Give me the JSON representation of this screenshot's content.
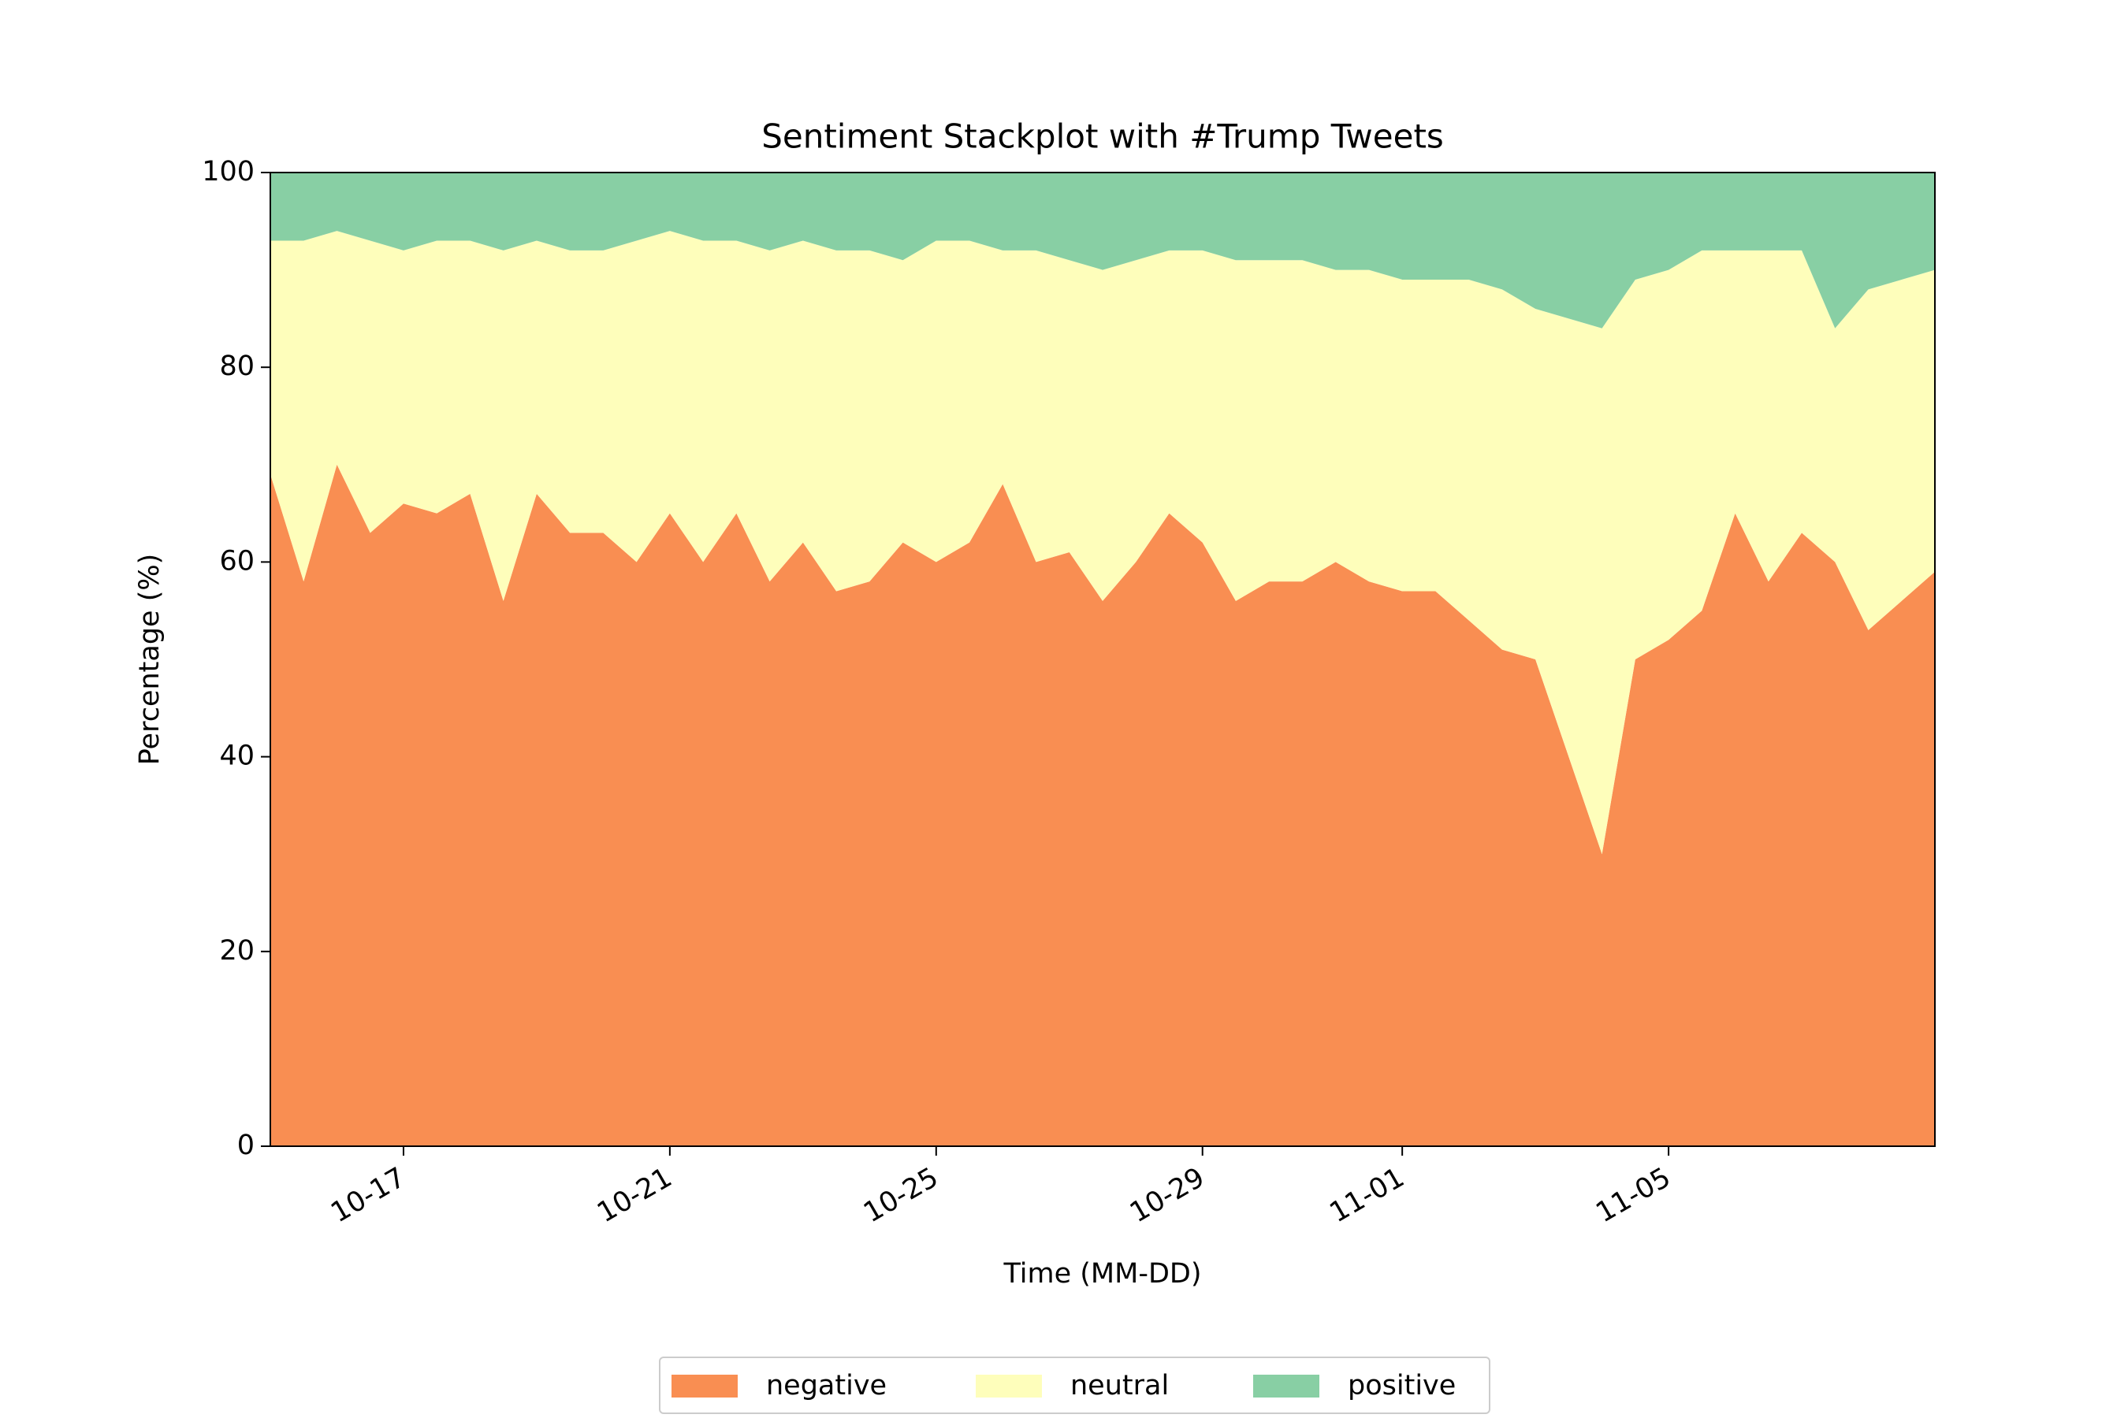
{
  "chart_data": {
    "type": "stackplot",
    "title": "Sentiment Stackplot with #Trump Tweets",
    "x_label": "Time (MM-DD)",
    "y_label": "Percentage (%)",
    "x": [
      0,
      0.5,
      1,
      1.5,
      2,
      2.5,
      3,
      3.5,
      4,
      4.5,
      5,
      5.5,
      6,
      6.5,
      7,
      7.5,
      8,
      8.5,
      9,
      9.5,
      10,
      10.5,
      11,
      11.5,
      12,
      12.5,
      13,
      13.5,
      14,
      14.5,
      15,
      15.5,
      16,
      16.5,
      17,
      17.5,
      18,
      18.5,
      19,
      19.5,
      20,
      20.5,
      21,
      21.5,
      22,
      22.5,
      23,
      23.5,
      24,
      24.5,
      25
    ],
    "series": [
      {
        "name": "negative",
        "color": "#f98e52",
        "values": [
          69,
          58,
          70,
          63,
          66,
          65,
          67,
          56,
          67,
          63,
          63,
          60,
          65,
          60,
          65,
          58,
          62,
          57,
          58,
          62,
          60,
          62,
          68,
          60,
          61,
          56,
          60,
          65,
          62,
          56,
          58,
          58,
          60,
          58,
          57,
          57,
          54,
          51,
          50,
          40,
          30,
          50,
          52,
          55,
          65,
          58,
          63,
          60,
          53,
          56,
          59
        ]
      },
      {
        "name": "neutral",
        "color": "#fefebb",
        "values": [
          24,
          35,
          24,
          30,
          26,
          28,
          26,
          36,
          26,
          29,
          29,
          33,
          29,
          33,
          28,
          34,
          31,
          35,
          34,
          29,
          33,
          31,
          24,
          32,
          30,
          34,
          31,
          27,
          30,
          35,
          33,
          33,
          30,
          32,
          32,
          32,
          35,
          37,
          36,
          45,
          54,
          39,
          38,
          37,
          27,
          34,
          29,
          24,
          35,
          33,
          31
        ]
      },
      {
        "name": "positive",
        "color": "#88cfa4",
        "values": [
          7,
          7,
          6,
          7,
          8,
          7,
          7,
          8,
          7,
          8,
          8,
          7,
          6,
          7,
          7,
          8,
          7,
          8,
          8,
          9,
          7,
          7,
          8,
          8,
          9,
          10,
          9,
          8,
          8,
          9,
          9,
          9,
          10,
          10,
          11,
          11,
          11,
          12,
          14,
          15,
          16,
          11,
          10,
          8,
          8,
          8,
          8,
          16,
          12,
          11,
          10
        ]
      }
    ],
    "xlim": [
      0,
      25
    ],
    "xticks": [
      {
        "value": 2,
        "label": "10-17"
      },
      {
        "value": 6,
        "label": "10-21"
      },
      {
        "value": 10,
        "label": "10-25"
      },
      {
        "value": 14,
        "label": "10-29"
      },
      {
        "value": 17,
        "label": "11-01"
      },
      {
        "value": 21,
        "label": "11-05"
      }
    ],
    "ylim": [
      0,
      100
    ],
    "yticks": [
      0,
      20,
      40,
      60,
      80,
      100
    ],
    "legend": "lower center"
  }
}
